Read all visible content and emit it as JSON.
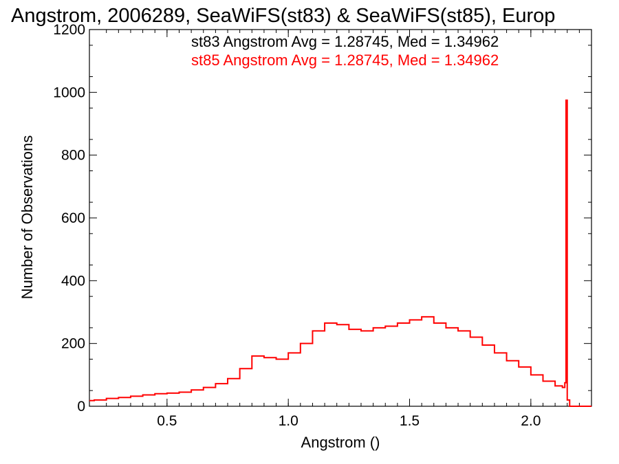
{
  "chart_data": {
    "type": "line",
    "title": "Angstrom, 2006289, SeaWiFS(st83) & SeaWiFS(st85), Europ",
    "xlabel": "Angstrom ()",
    "ylabel": "Number of Observations",
    "xlim": [
      0.18,
      2.25
    ],
    "ylim": [
      0,
      1200
    ],
    "x_ticks": [
      0.5,
      1.0,
      1.5,
      2.0
    ],
    "x_tick_labels": [
      "0.5",
      "1.0",
      "1.5",
      "2.0"
    ],
    "y_ticks": [
      0,
      200,
      400,
      600,
      800,
      1000,
      1200
    ],
    "y_tick_labels": [
      "0",
      "200",
      "400",
      "600",
      "800",
      "1000",
      "1200"
    ],
    "grid": false,
    "legend_position": "top-center",
    "annotations": [
      {
        "text": "st83 Angstrom Avg = 1.28745, Med = 1.34962",
        "color": "#000000"
      },
      {
        "text": "st85 Angstrom Avg = 1.28745, Med = 1.34962",
        "color": "#ff0000"
      }
    ],
    "series": [
      {
        "color": "#ff0000",
        "x": [
          0.18,
          0.2,
          0.25,
          0.3,
          0.35,
          0.4,
          0.45,
          0.5,
          0.55,
          0.6,
          0.65,
          0.7,
          0.75,
          0.8,
          0.85,
          0.9,
          0.95,
          1.0,
          1.05,
          1.1,
          1.15,
          1.2,
          1.25,
          1.3,
          1.35,
          1.4,
          1.45,
          1.5,
          1.55,
          1.6,
          1.65,
          1.7,
          1.75,
          1.8,
          1.85,
          1.9,
          1.95,
          2.0,
          2.05,
          2.1,
          2.13,
          2.14,
          2.145,
          2.15,
          2.16,
          2.2,
          2.25
        ],
        "y": [
          18,
          20,
          25,
          28,
          32,
          36,
          40,
          42,
          45,
          52,
          60,
          72,
          88,
          120,
          160,
          155,
          150,
          170,
          200,
          240,
          265,
          260,
          245,
          240,
          250,
          255,
          265,
          275,
          285,
          265,
          250,
          240,
          220,
          195,
          170,
          145,
          125,
          100,
          80,
          65,
          60,
          75,
          975,
          20,
          0,
          0,
          0
        ]
      }
    ]
  }
}
